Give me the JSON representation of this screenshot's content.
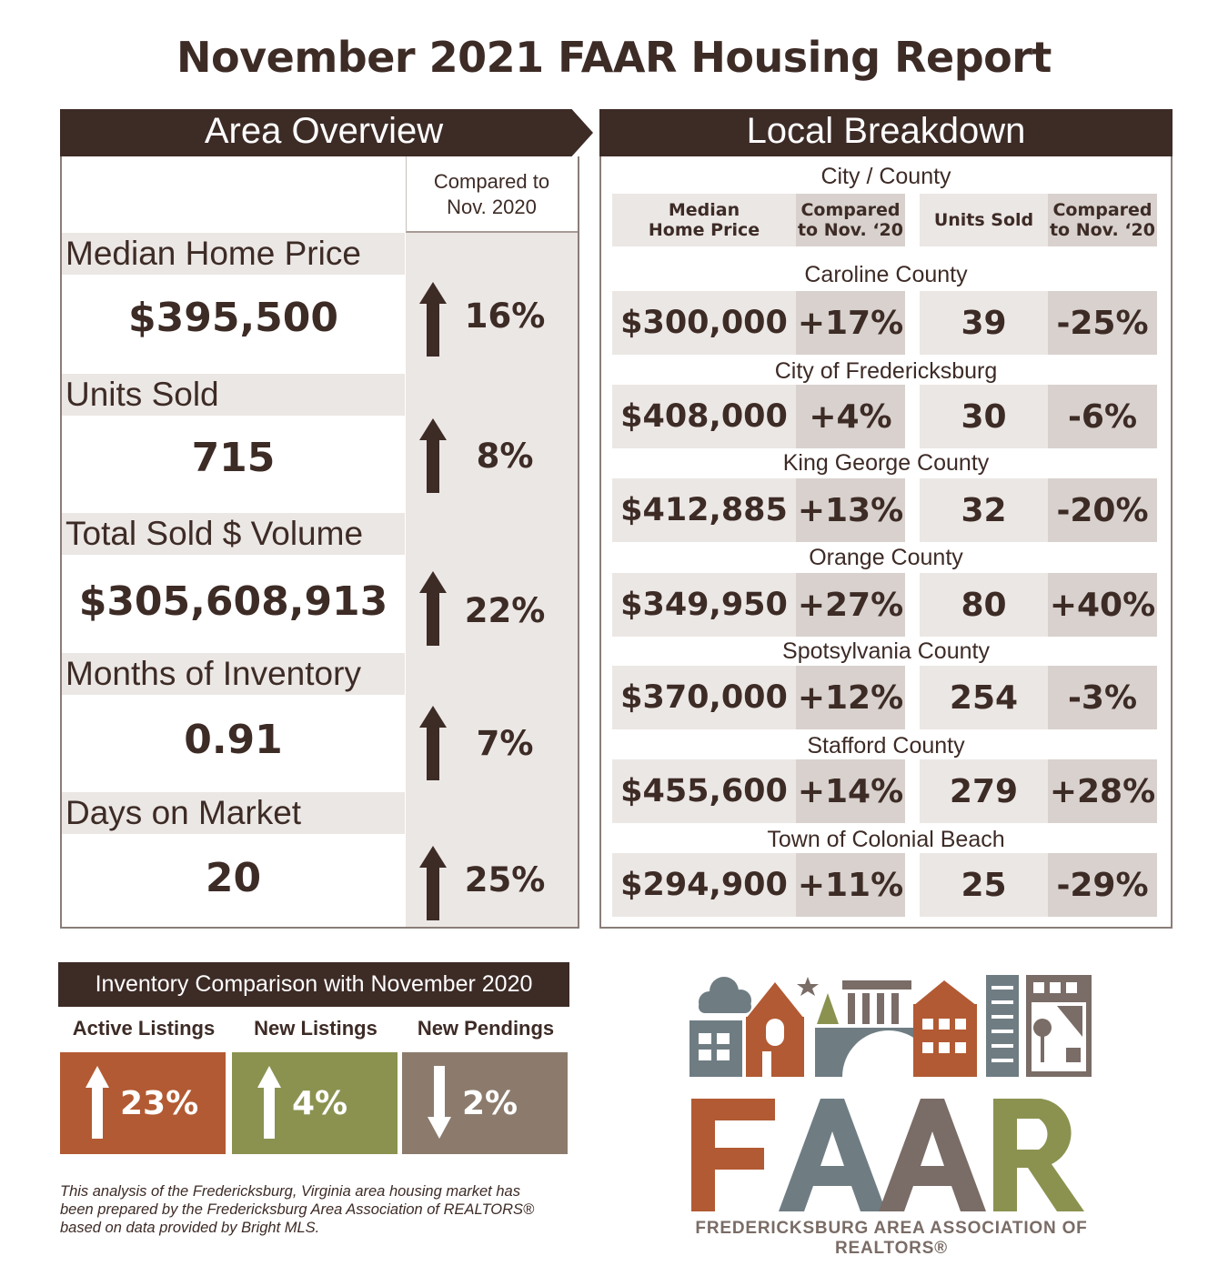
{
  "title": "November 2021 FAAR Housing Report",
  "area_overview": {
    "header": "Area Overview",
    "compare_header": "Compared to\nNov. 2020",
    "metrics": [
      {
        "label": "Median Home Price",
        "value": "$395,500",
        "change": "16%",
        "direction": "up"
      },
      {
        "label": "Units Sold",
        "value": "715",
        "change": "8%",
        "direction": "up"
      },
      {
        "label": "Total Sold $ Volume",
        "value": "$305,608,913",
        "change": "22%",
        "direction": "up"
      },
      {
        "label": "Months of Inventory",
        "value": "0.91",
        "change": "7%",
        "direction": "up"
      },
      {
        "label": "Days on Market",
        "value": "20",
        "change": "25%",
        "direction": "up"
      }
    ]
  },
  "local_breakdown": {
    "header": "Local Breakdown",
    "subheader": "City / County",
    "columns": [
      "Median\nHome Price",
      "Compared\nto Nov. ‘20",
      "Units Sold",
      "Compared\nto Nov. ‘20"
    ],
    "rows": [
      {
        "name": "Caroline County",
        "price": "$300,000",
        "price_change": "+17%",
        "units": "39",
        "units_change": "-25%"
      },
      {
        "name": "City of Fredericksburg",
        "price": "$408,000",
        "price_change": "+4%",
        "units": "30",
        "units_change": "-6%"
      },
      {
        "name": "King George County",
        "price": "$412,885",
        "price_change": "+13%",
        "units": "32",
        "units_change": "-20%"
      },
      {
        "name": "Orange County",
        "price": "$349,950",
        "price_change": "+27%",
        "units": "80",
        "units_change": "+40%"
      },
      {
        "name": "Spotsylvania County",
        "price": "$370,000",
        "price_change": "+12%",
        "units": "254",
        "units_change": "-3%"
      },
      {
        "name": "Stafford County",
        "price": "$455,600",
        "price_change": "+14%",
        "units": "279",
        "units_change": "+28%"
      },
      {
        "name": "Town of Colonial Beach",
        "price": "$294,900",
        "price_change": "+11%",
        "units": "25",
        "units_change": "-29%"
      }
    ]
  },
  "inventory": {
    "header": "Inventory Comparison with November 2020",
    "items": [
      {
        "label": "Active Listings",
        "change": "23%",
        "direction": "up",
        "color": "#b25a33"
      },
      {
        "label": "New Listings",
        "change": "4%",
        "direction": "up",
        "color": "#8b9250"
      },
      {
        "label": "New Pendings",
        "change": "2%",
        "direction": "down",
        "color": "#8c7b6c"
      }
    ]
  },
  "footnote": "This analysis of the Fredericksburg, Virginia area housing market has\nbeen prepared by the Fredericksburg Area Association of REALTORS®\nbased on data provided by Bright MLS.",
  "logo": {
    "wordmark": "FAAR",
    "tagline": "FREDERICKSBURG AREA ASSOCIATION OF REALTORS®"
  },
  "colors": {
    "dark_brown": "#3d2b26",
    "light_bg": "#ebe7e4",
    "mid_bg": "#d8d1cd",
    "rust": "#b25a33",
    "olive": "#8b9250",
    "taupe": "#8c7b6c",
    "slate": "#6f7d83"
  }
}
